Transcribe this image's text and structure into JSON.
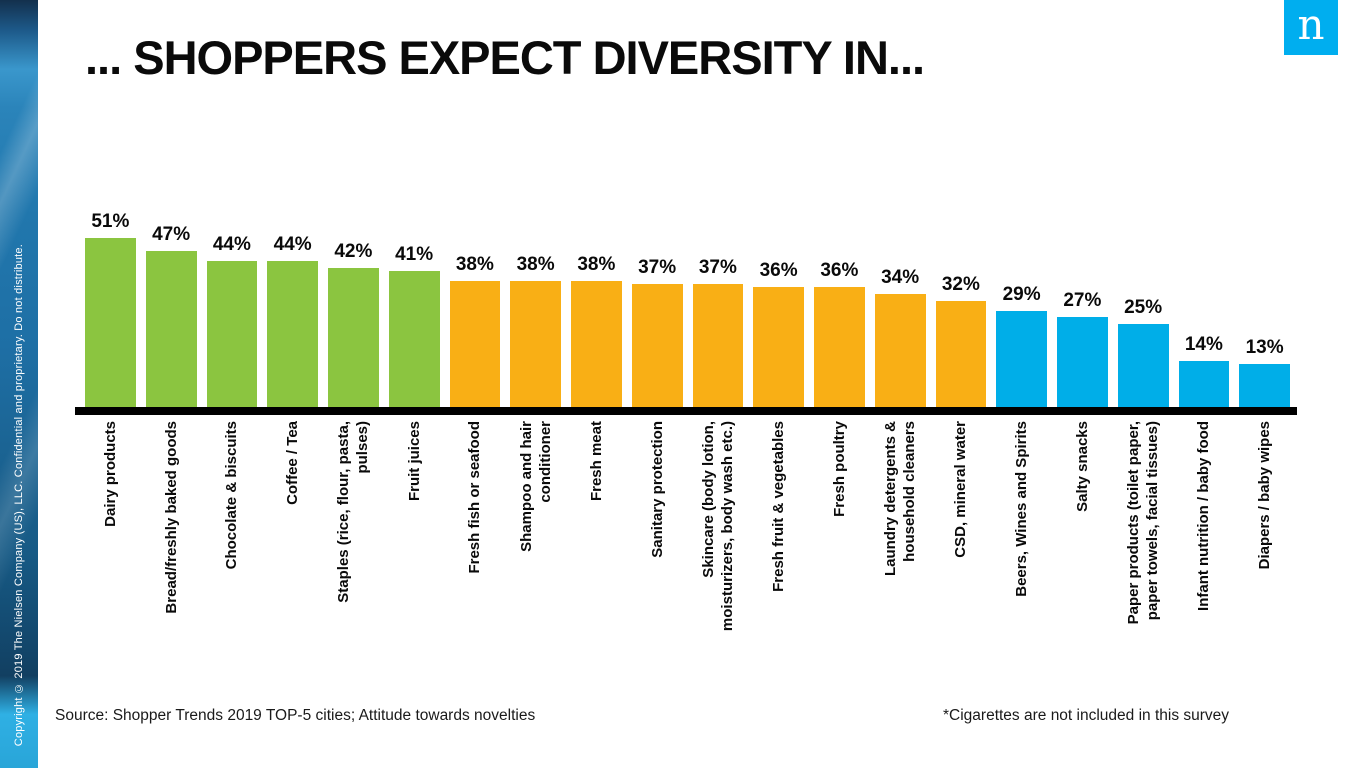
{
  "slide": {
    "title": "... SHOPPERS EXPECT DIVERSITY IN...",
    "copyright_vertical": "Copyright © 2019 The Nielsen Company (US), LLC. Confidential and proprietary. Do not distribute.",
    "footer_source": "Source: Shopper Trends 2019 TOP-5 cities; Attitude towards novelties",
    "footer_note": "*Cigarettes are not included in this survey",
    "logo_letter": "n"
  },
  "colors": {
    "green": "#8BC540",
    "orange": "#F9AF15",
    "blue": "#00AEE8",
    "logo_blue": "#00AEEF",
    "axis": "#000000"
  },
  "chart_data": {
    "type": "bar",
    "title": "... SHOPPERS EXPECT DIVERSITY IN...",
    "unit": "%",
    "y_axis_visible": false,
    "ylim": [
      0,
      55
    ],
    "legend": "none",
    "categories": [
      "Dairy products",
      "Bread/freshly baked goods",
      "Chocolate & biscuits",
      "Coffee / Tea",
      "Staples (rice, flour, pasta, pulses)",
      "Fruit juices",
      "Fresh fish or seafood",
      "Shampoo and hair conditioner",
      "Fresh meat",
      "Sanitary protection",
      "Skincare (body lotion, moisturizers, body wash etc.)",
      "Fresh fruit & vegetables",
      "Fresh poultry",
      "Laundry detergents & household cleaners",
      "CSD, mineral water",
      "Beers, Wines and Spirits",
      "Salty snacks",
      "Paper products (toilet paper, paper towels, facial tissues)",
      "Infant nutrition / baby food",
      "Diapers / baby wipes"
    ],
    "values": [
      51,
      47,
      44,
      44,
      42,
      41,
      38,
      38,
      38,
      37,
      37,
      36,
      36,
      34,
      32,
      29,
      27,
      25,
      14,
      13
    ],
    "bar_colors": [
      "green",
      "green",
      "green",
      "green",
      "green",
      "green",
      "orange",
      "orange",
      "orange",
      "orange",
      "orange",
      "orange",
      "orange",
      "orange",
      "orange",
      "blue",
      "blue",
      "blue",
      "blue",
      "blue"
    ],
    "label_lines": [
      [
        "Dairy products"
      ],
      [
        "Bread/freshly baked goods"
      ],
      [
        "Chocolate & biscuits"
      ],
      [
        "Coffee / Tea"
      ],
      [
        "Staples (rice, flour, pasta,",
        "pulses)"
      ],
      [
        "Fruit juices"
      ],
      [
        "Fresh fish or seafood"
      ],
      [
        "Shampoo and hair",
        "conditioner"
      ],
      [
        "Fresh meat"
      ],
      [
        "Sanitary protection"
      ],
      [
        "Skincare (body lotion,",
        "moisturizers, body wash etc.)"
      ],
      [
        "Fresh fruit & vegetables"
      ],
      [
        "Fresh poultry"
      ],
      [
        "Laundry detergents &",
        "household cleaners"
      ],
      [
        "CSD, mineral water"
      ],
      [
        "Beers, Wines and Spirits"
      ],
      [
        "Salty snacks"
      ],
      [
        "Paper products (toilet paper,",
        "paper towels, facial tissues)"
      ],
      [
        "Infant nutrition / baby food"
      ],
      [
        "Diapers / baby wipes"
      ]
    ]
  }
}
